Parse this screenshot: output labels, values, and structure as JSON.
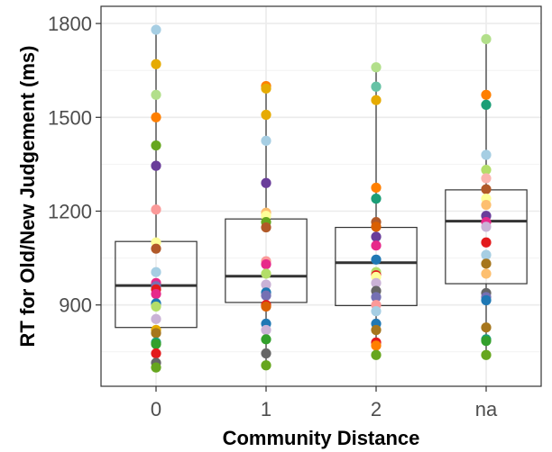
{
  "chart_data": {
    "type": "box",
    "xlabel": "Community Distance",
    "ylabel": "RT for Old/New Judgement (ms)",
    "categories": [
      "0",
      "1",
      "2",
      "na"
    ],
    "ylim": [
      640,
      1855
    ],
    "yticks": [
      900,
      1200,
      1500,
      1800
    ],
    "grid": true,
    "boxes": [
      {
        "category": "0",
        "q1": 828,
        "median": 962,
        "q3": 1103,
        "whisker_low": 700,
        "whisker_high": 1780
      },
      {
        "category": "1",
        "q1": 908,
        "median": 992,
        "q3": 1175,
        "whisker_low": 707,
        "whisker_high": 1600
      },
      {
        "category": "2",
        "q1": 898,
        "median": 1035,
        "q3": 1148,
        "whisker_low": 740,
        "whisker_high": 1660
      },
      {
        "category": "na",
        "q1": 968,
        "median": 1168,
        "q3": 1268,
        "whisker_low": 740,
        "whisker_high": 1750
      }
    ],
    "points": [
      {
        "category": "0",
        "values": [
          1780,
          1670,
          1572,
          1500,
          1410,
          1345,
          1205,
          1100,
          1080,
          1005,
          970,
          960,
          950,
          935,
          905,
          895,
          855,
          820,
          810,
          780,
          775,
          745,
          715,
          700
        ],
        "colors": [
          "#a6cee3",
          "#e6ab02",
          "#b2df8a",
          "#ff7f00",
          "#66a61e",
          "#6a3d9a",
          "#fb9a99",
          "#ffff99",
          "#b15928",
          "#a6cee3",
          "#e7298a",
          "#7570b3",
          "#e31a1c",
          "#e7298a",
          "#1f78b4",
          "#b3de69",
          "#cab2d6",
          "#e6ab02",
          "#a6761d",
          "#1b9e77",
          "#33a02c",
          "#e31a1c",
          "#666666",
          "#66a61e"
        ]
      },
      {
        "category": "1",
        "values": [
          1600,
          1592,
          1508,
          1425,
          1290,
          1195,
          1185,
          1165,
          1148,
          1040,
          1030,
          1000,
          965,
          940,
          930,
          900,
          895,
          840,
          820,
          790,
          745,
          707
        ],
        "colors": [
          "#ff7f00",
          "#e6ab02",
          "#e6ab02",
          "#a6cee3",
          "#6a3d9a",
          "#fdbf6f",
          "#ffff99",
          "#66a61e",
          "#b15928",
          "#fb9a99",
          "#e7298a",
          "#b3de69",
          "#cab2d6",
          "#1f78b4",
          "#7570b3",
          "#e31a1c",
          "#d95f02",
          "#1f78b4",
          "#cab2d6",
          "#33a02c",
          "#666666",
          "#66a61e"
        ]
      },
      {
        "category": "2",
        "values": [
          1660,
          1598,
          1555,
          1275,
          1240,
          1165,
          1150,
          1118,
          1090,
          1045,
          1005,
          995,
          990,
          970,
          945,
          925,
          900,
          880,
          840,
          820,
          780,
          770,
          740
        ],
        "colors": [
          "#b2df8a",
          "#66c2a5",
          "#e6ab02",
          "#ff7f00",
          "#1b9e77",
          "#b15928",
          "#d95f02",
          "#6a3d9a",
          "#e7298a",
          "#1f78b4",
          "#b3de69",
          "#e31a1c",
          "#ffff99",
          "#cab2d6",
          "#666666",
          "#7570b3",
          "#fb9a99",
          "#a6cee3",
          "#1f78b4",
          "#a6761d",
          "#e31a1c",
          "#ff7f00",
          "#66a61e"
        ]
      },
      {
        "category": "na",
        "values": [
          1750,
          1572,
          1540,
          1380,
          1332,
          1305,
          1270,
          1240,
          1220,
          1185,
          1165,
          1150,
          1100,
          1060,
          1032,
          1000,
          938,
          925,
          915,
          828,
          790,
          785,
          740
        ],
        "colors": [
          "#b2df8a",
          "#ff7f00",
          "#1b9e77",
          "#a6cee3",
          "#b3de69",
          "#fbb4ae",
          "#b15928",
          "#ffff99",
          "#fdbf6f",
          "#6a3d9a",
          "#e7298a",
          "#cab2d6",
          "#e31a1c",
          "#a6cee3",
          "#a6761d",
          "#fdbf6f",
          "#666666",
          "#7570b3",
          "#1f78b4",
          "#a6761d",
          "#1b9e77",
          "#33a02c",
          "#66a61e"
        ]
      }
    ]
  }
}
